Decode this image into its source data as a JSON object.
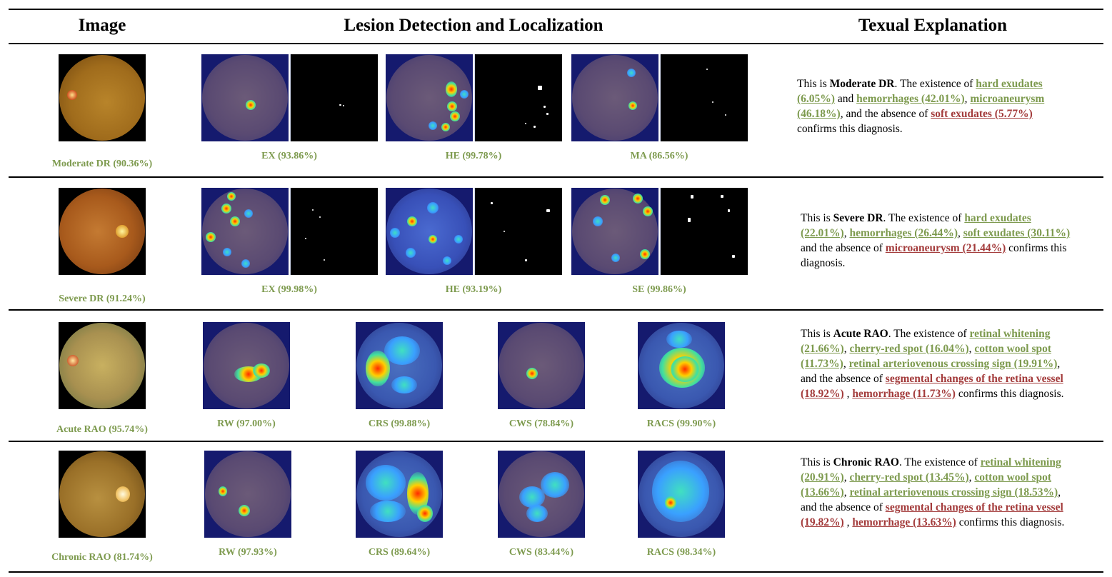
{
  "header": {
    "col_image": "Image",
    "col_lesion": "Lesion Detection and Localization",
    "col_text": "Texual Explanation"
  },
  "rows": [
    {
      "image_label": "Moderate DR (90.36%)",
      "lesions": [
        "EX (93.86%)",
        "HE (99.78%)",
        "MA (86.56%)"
      ],
      "explanation": {
        "prefix": "This is ",
        "diagnosis": "Moderate DR",
        "mid": ". The existence of ",
        "present": [
          "hard exudates (6.05%)",
          "hemorrhages (42.01%)",
          "microaneurysm (46.18%)"
        ],
        "absence_text": ", and the absence of ",
        "absent": [
          "soft exudates (5.77%)"
        ],
        "suffix": " confirms this diagnosis."
      }
    },
    {
      "image_label": "Severe DR (91.24%)",
      "lesions": [
        "EX (99.98%)",
        "HE (93.19%)",
        "SE (99.86%)"
      ],
      "explanation": {
        "prefix": "This is ",
        "diagnosis": "Severe DR",
        "mid": ". The existence of ",
        "present": [
          "hard exudates (22.01%)",
          "hemorrhages (26.44%)",
          "soft exudates (30.11%)"
        ],
        "absence_text": " and the absence of ",
        "absent": [
          "microaneurysm (21.44%)"
        ],
        "suffix": " confirms this diagnosis."
      }
    },
    {
      "image_label": "Acute RAO (95.74%)",
      "lesions": [
        "RW (97.00%)",
        "CRS (99.88%)",
        "CWS (78.84%)",
        "RACS (99.90%)"
      ],
      "explanation": {
        "prefix": "This is ",
        "diagnosis": "Acute RAO",
        "mid": ". The existence of ",
        "present": [
          "retinal whitening (21.66%)",
          "cherry-red spot (16.04%)",
          "cotton wool spot (11.73%)",
          "retinal arteriovenous crossing sign (19.91%)"
        ],
        "absence_text": ", and the absence of ",
        "absent": [
          "segmental changes of the retina vessel (18.92%)",
          "hemorrhage (11.73%)"
        ],
        "suffix": " confirms this diagnosis."
      }
    },
    {
      "image_label": "Chronic RAO (81.74%)",
      "lesions": [
        "RW (97.93%)",
        "CRS (89.64%)",
        "CWS (83.44%)",
        "RACS (98.34%)"
      ],
      "explanation": {
        "prefix": "This is ",
        "diagnosis": "Chronic  RAO",
        "mid": ". The existence of ",
        "present": [
          "retinal whitening (20.91%)",
          "cherry-red spot (13.45%)",
          "cotton wool spot (13.66%)",
          "retinal arteriovenous crossing sign (18.53%)"
        ],
        "absence_text": ", and the absence of ",
        "absent": [
          "segmental changes of the retina vessel (19.82%)",
          "hemorrhage (13.63%)"
        ],
        "suffix": " confirms this diagnosis."
      }
    }
  ],
  "colors": {
    "present": "#7d9a4e",
    "absent": "#a33b3b",
    "rule": "#000000"
  }
}
